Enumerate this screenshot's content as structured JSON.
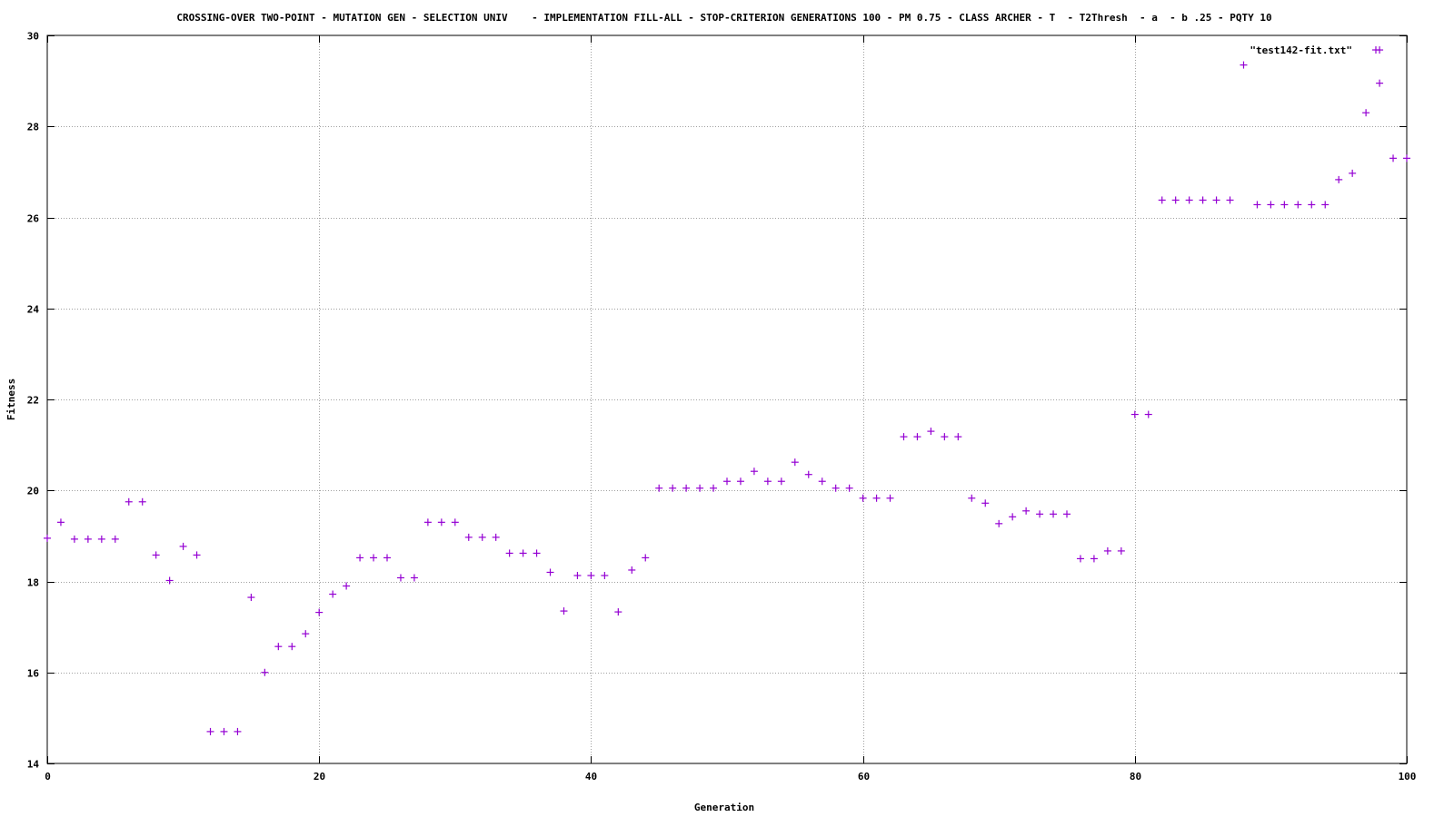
{
  "chart_data": {
    "type": "scatter",
    "title": "CROSSING-OVER TWO-POINT - MUTATION GEN - SELECTION UNIV    - IMPLEMENTATION FILL-ALL - STOP-CRITERION GENERATIONS 100 - PM 0.75 - CLASS ARCHER - T  - T2Thresh  - a  - b .25 - PQTY 10",
    "xlabel": "Generation",
    "ylabel": "Fitness",
    "xlim": [
      0,
      100
    ],
    "ylim": [
      14,
      30
    ],
    "xticks": [
      0,
      20,
      40,
      60,
      80,
      100
    ],
    "yticks": [
      14,
      16,
      18,
      20,
      22,
      24,
      26,
      28,
      30
    ],
    "grid": true,
    "legend_position": "top-right",
    "series": [
      {
        "name": "\"test142-fit.txt\"",
        "color": "#9400d3",
        "marker": "plus",
        "x": [
          0,
          1,
          2,
          3,
          4,
          5,
          6,
          7,
          8,
          9,
          10,
          11,
          12,
          13,
          14,
          15,
          16,
          17,
          18,
          19,
          20,
          21,
          22,
          23,
          24,
          25,
          26,
          27,
          28,
          29,
          30,
          31,
          32,
          33,
          34,
          35,
          36,
          37,
          38,
          39,
          40,
          41,
          42,
          43,
          44,
          45,
          46,
          47,
          48,
          49,
          50,
          51,
          52,
          53,
          54,
          55,
          56,
          57,
          58,
          59,
          60,
          61,
          62,
          63,
          64,
          65,
          66,
          67,
          68,
          69,
          70,
          71,
          72,
          73,
          74,
          75,
          76,
          77,
          78,
          79,
          80,
          81,
          82,
          83,
          84,
          85,
          86,
          87,
          88,
          89,
          90,
          91,
          92,
          93,
          94,
          95,
          96,
          97,
          98,
          98,
          99,
          100
        ],
        "y": [
          18.95,
          19.3,
          18.93,
          18.93,
          18.93,
          18.93,
          19.75,
          19.75,
          18.58,
          18.02,
          18.77,
          18.58,
          14.7,
          14.7,
          14.7,
          17.65,
          16.0,
          16.57,
          16.57,
          16.85,
          17.32,
          17.72,
          17.9,
          18.52,
          18.52,
          18.52,
          18.08,
          18.08,
          19.3,
          19.3,
          19.3,
          18.97,
          18.97,
          18.97,
          18.62,
          18.62,
          18.62,
          18.2,
          17.35,
          18.13,
          18.13,
          18.13,
          17.33,
          18.25,
          18.52,
          20.05,
          20.05,
          20.05,
          20.05,
          20.05,
          20.2,
          20.2,
          20.42,
          20.2,
          20.2,
          20.62,
          20.35,
          20.2,
          20.05,
          20.05,
          19.83,
          19.83,
          19.83,
          21.18,
          21.18,
          21.3,
          21.18,
          21.18,
          19.83,
          19.72,
          19.27,
          19.42,
          19.55,
          19.48,
          19.48,
          19.48,
          18.5,
          18.5,
          18.67,
          18.67,
          21.67,
          21.67,
          26.38,
          26.38,
          26.38,
          26.38,
          26.38,
          26.38,
          29.35,
          26.28,
          26.28,
          26.28,
          26.28,
          26.28,
          26.28,
          26.83,
          26.97,
          28.3,
          29.68,
          28.95,
          27.3,
          27.3
        ]
      }
    ]
  }
}
